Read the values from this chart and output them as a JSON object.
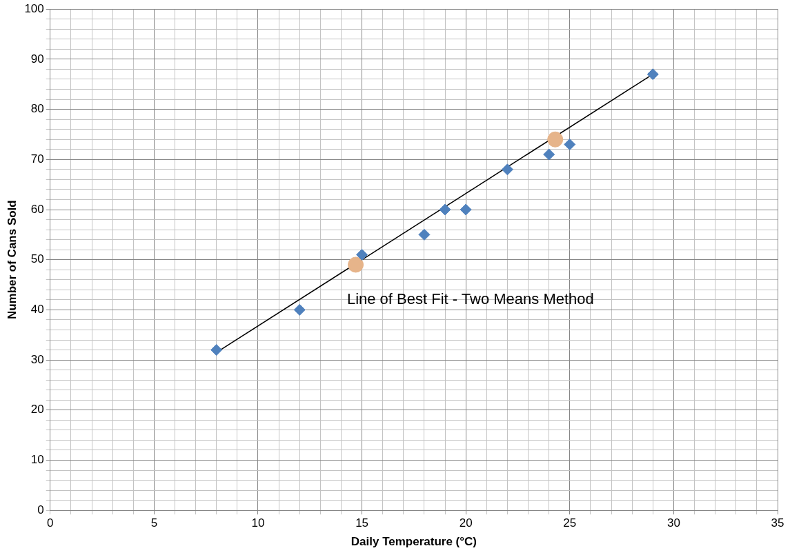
{
  "chart_data": {
    "type": "scatter",
    "xlabel": "Daily Temperature (°C)",
    "ylabel": "Number of Cans Sold",
    "xlim": [
      0,
      35
    ],
    "ylim": [
      0,
      100
    ],
    "xticks": [
      0,
      {
        "value": 1,
        "label": null
      },
      {
        "value": 2,
        "label": null
      },
      {
        "value": 3,
        "label": null
      },
      {
        "value": 4,
        "label": null
      },
      5,
      {
        "value": 6,
        "label": null
      },
      {
        "value": 7,
        "label": null
      },
      {
        "value": 8,
        "label": null
      },
      {
        "value": 9,
        "label": null
      },
      10,
      {
        "value": 11,
        "label": null
      },
      {
        "value": 12,
        "label": null
      },
      {
        "value": 13,
        "label": null
      },
      {
        "value": 14,
        "label": null
      },
      15,
      {
        "value": 16,
        "label": null
      },
      {
        "value": 17,
        "label": null
      },
      {
        "value": 18,
        "label": null
      },
      {
        "value": 19,
        "label": null
      },
      20,
      {
        "value": 21,
        "label": null
      },
      {
        "value": 22,
        "label": null
      },
      {
        "value": 23,
        "label": null
      },
      {
        "value": 24,
        "label": null
      },
      25,
      {
        "value": 26,
        "label": null
      },
      {
        "value": 27,
        "label": null
      },
      {
        "value": 28,
        "label": null
      },
      {
        "value": 29,
        "label": null
      },
      30,
      {
        "value": 31,
        "label": null
      },
      {
        "value": 32,
        "label": null
      },
      {
        "value": 33,
        "label": null
      },
      {
        "value": 34,
        "label": null
      },
      35
    ],
    "yticks": [
      0,
      {
        "value": 2,
        "label": null
      },
      {
        "value": 4,
        "label": null
      },
      {
        "value": 6,
        "label": null
      },
      {
        "value": 8,
        "label": null
      },
      10,
      {
        "value": 12,
        "label": null
      },
      {
        "value": 14,
        "label": null
      },
      {
        "value": 16,
        "label": null
      },
      {
        "value": 18,
        "label": null
      },
      20,
      {
        "value": 22,
        "label": null
      },
      {
        "value": 24,
        "label": null
      },
      {
        "value": 26,
        "label": null
      },
      {
        "value": 28,
        "label": null
      },
      30,
      {
        "value": 32,
        "label": null
      },
      {
        "value": 34,
        "label": null
      },
      {
        "value": 36,
        "label": null
      },
      {
        "value": 38,
        "label": null
      },
      40,
      {
        "value": 42,
        "label": null
      },
      {
        "value": 44,
        "label": null
      },
      {
        "value": 46,
        "label": null
      },
      {
        "value": 48,
        "label": null
      },
      50,
      {
        "value": 52,
        "label": null
      },
      {
        "value": 54,
        "label": null
      },
      {
        "value": 56,
        "label": null
      },
      {
        "value": 58,
        "label": null
      },
      60,
      {
        "value": 62,
        "label": null
      },
      {
        "value": 64,
        "label": null
      },
      {
        "value": 66,
        "label": null
      },
      {
        "value": 68,
        "label": null
      },
      70,
      {
        "value": 72,
        "label": null
      },
      {
        "value": 74,
        "label": null
      },
      {
        "value": 76,
        "label": null
      },
      {
        "value": 78,
        "label": null
      },
      80,
      {
        "value": 82,
        "label": null
      },
      {
        "value": 84,
        "label": null
      },
      {
        "value": 86,
        "label": null
      },
      {
        "value": 88,
        "label": null
      },
      90,
      {
        "value": 92,
        "label": null
      },
      {
        "value": 94,
        "label": null
      },
      {
        "value": 96,
        "label": null
      },
      {
        "value": 98,
        "label": null
      },
      100
    ],
    "grid": true,
    "legend": false,
    "marker": "diamond",
    "series": [
      {
        "color": "#4f81bd",
        "x": [
          8,
          12,
          15,
          18,
          19,
          20,
          22,
          24,
          25,
          29
        ],
        "values": [
          32,
          40,
          51,
          55,
          60,
          60,
          68,
          71,
          73,
          87
        ]
      },
      {
        "color": "#e6b48a",
        "marker": "circle",
        "x": [
          14.7,
          24.3
        ],
        "values": [
          49,
          74
        ]
      },
      {
        "type": "line",
        "color": "#000000",
        "marker": "none",
        "x": [
          8,
          29
        ],
        "values": [
          31.5,
          87
        ]
      }
    ],
    "annotations": [
      "Line of Best Fit - Two Means Method"
    ]
  }
}
